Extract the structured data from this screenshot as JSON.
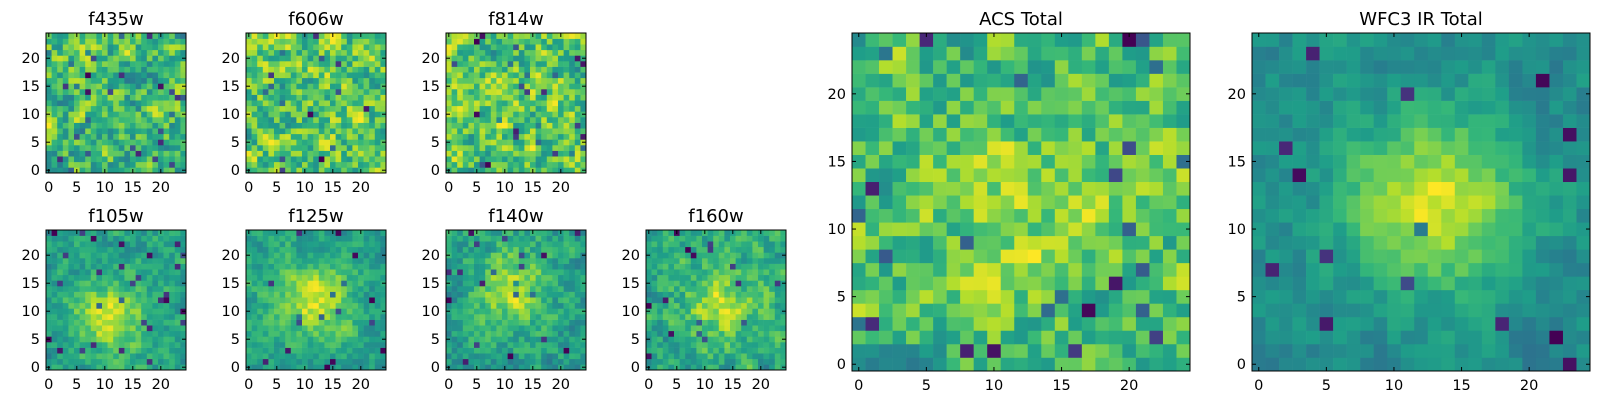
{
  "chart_data": [
    {
      "id": "f435w",
      "type": "heatmap",
      "title": "f435w",
      "colormap": "viridis",
      "grid_size": [
        25,
        25
      ],
      "seed": 11,
      "noise_weight": 1.0,
      "blob_weight": 0.0,
      "blob_center": [
        12,
        12
      ],
      "xlim": [
        -0.5,
        24.5
      ],
      "ylim": [
        -0.5,
        24.5
      ],
      "xticks": [
        0,
        5,
        10,
        15,
        20
      ],
      "yticks": [
        0,
        5,
        10,
        15,
        20
      ],
      "xtick_labels": [
        "0",
        "5",
        "10",
        "15",
        "20"
      ],
      "ytick_labels": [
        "0",
        "5",
        "10",
        "15",
        "20"
      ],
      "grid": false,
      "colorbar": false
    },
    {
      "id": "f606w",
      "type": "heatmap",
      "title": "f606w",
      "colormap": "viridis",
      "grid_size": [
        25,
        25
      ],
      "seed": 23,
      "noise_weight": 1.0,
      "blob_weight": 0.0,
      "blob_center": [
        12,
        12
      ],
      "xlim": [
        -0.5,
        24.5
      ],
      "ylim": [
        -0.5,
        24.5
      ],
      "xticks": [
        0,
        5,
        10,
        15,
        20
      ],
      "yticks": [
        0,
        5,
        10,
        15,
        20
      ],
      "xtick_labels": [
        "0",
        "5",
        "10",
        "15",
        "20"
      ],
      "ytick_labels": [
        "0",
        "5",
        "10",
        "15",
        "20"
      ],
      "grid": false,
      "colorbar": false
    },
    {
      "id": "f814w",
      "type": "heatmap",
      "title": "f814w",
      "colormap": "viridis",
      "grid_size": [
        25,
        25
      ],
      "seed": 37,
      "noise_weight": 1.0,
      "blob_weight": 0.05,
      "blob_center": [
        12,
        12
      ],
      "xlim": [
        -0.5,
        24.5
      ],
      "ylim": [
        -0.5,
        24.5
      ],
      "xticks": [
        0,
        5,
        10,
        15,
        20
      ],
      "yticks": [
        0,
        5,
        10,
        15,
        20
      ],
      "xtick_labels": [
        "0",
        "5",
        "10",
        "15",
        "20"
      ],
      "ytick_labels": [
        "0",
        "5",
        "10",
        "15",
        "20"
      ],
      "grid": false,
      "colorbar": false
    },
    {
      "id": "f105w",
      "type": "heatmap",
      "title": "f105w",
      "colormap": "viridis",
      "grid_size": [
        25,
        25
      ],
      "seed": 41,
      "noise_weight": 0.55,
      "blob_weight": 0.45,
      "blob_center": [
        11,
        9
      ],
      "xlim": [
        -0.5,
        24.5
      ],
      "ylim": [
        -0.5,
        24.5
      ],
      "xticks": [
        0,
        5,
        10,
        15,
        20
      ],
      "yticks": [
        0,
        5,
        10,
        15,
        20
      ],
      "xtick_labels": [
        "0",
        "5",
        "10",
        "15",
        "20"
      ],
      "ytick_labels": [
        "0",
        "5",
        "10",
        "15",
        "20"
      ],
      "grid": false,
      "colorbar": false
    },
    {
      "id": "f125w",
      "type": "heatmap",
      "title": "f125w",
      "colormap": "viridis",
      "grid_size": [
        25,
        25
      ],
      "seed": 53,
      "noise_weight": 0.55,
      "blob_weight": 0.45,
      "blob_center": [
        12,
        12
      ],
      "xlim": [
        -0.5,
        24.5
      ],
      "ylim": [
        -0.5,
        24.5
      ],
      "xticks": [
        0,
        5,
        10,
        15,
        20
      ],
      "yticks": [
        0,
        5,
        10,
        15,
        20
      ],
      "xtick_labels": [
        "0",
        "5",
        "10",
        "15",
        "20"
      ],
      "ytick_labels": [
        "0",
        "5",
        "10",
        "15",
        "20"
      ],
      "grid": false,
      "colorbar": false
    },
    {
      "id": "f140w",
      "type": "heatmap",
      "title": "f140w",
      "colormap": "viridis",
      "grid_size": [
        25,
        25
      ],
      "seed": 67,
      "noise_weight": 0.6,
      "blob_weight": 0.4,
      "blob_center": [
        11,
        14
      ],
      "xlim": [
        -0.5,
        24.5
      ],
      "ylim": [
        -0.5,
        24.5
      ],
      "xticks": [
        0,
        5,
        10,
        15,
        20
      ],
      "yticks": [
        0,
        5,
        10,
        15,
        20
      ],
      "xtick_labels": [
        "0",
        "5",
        "10",
        "15",
        "20"
      ],
      "ytick_labels": [
        "0",
        "5",
        "10",
        "15",
        "20"
      ],
      "grid": false,
      "colorbar": false
    },
    {
      "id": "f160w",
      "type": "heatmap",
      "title": "f160w",
      "colormap": "viridis",
      "grid_size": [
        25,
        25
      ],
      "seed": 79,
      "noise_weight": 0.65,
      "blob_weight": 0.35,
      "blob_center": [
        13,
        11
      ],
      "xlim": [
        -0.5,
        24.5
      ],
      "ylim": [
        -0.5,
        24.5
      ],
      "xticks": [
        0,
        5,
        10,
        15,
        20
      ],
      "yticks": [
        0,
        5,
        10,
        15,
        20
      ],
      "xtick_labels": [
        "0",
        "5",
        "10",
        "15",
        "20"
      ],
      "ytick_labels": [
        "0",
        "5",
        "10",
        "15",
        "20"
      ],
      "grid": false,
      "colorbar": false
    },
    {
      "id": "acs-total",
      "type": "heatmap",
      "title": "ACS Total",
      "colormap": "viridis",
      "grid_size": [
        25,
        25
      ],
      "seed": 97,
      "noise_weight": 0.85,
      "blob_weight": 0.15,
      "blob_center": [
        12,
        12
      ],
      "xlim": [
        -0.5,
        24.5
      ],
      "ylim": [
        -0.5,
        24.5
      ],
      "xticks": [
        0,
        5,
        10,
        15,
        20
      ],
      "yticks": [
        0,
        5,
        10,
        15,
        20
      ],
      "xtick_labels": [
        "0",
        "5",
        "10",
        "15",
        "20"
      ],
      "ytick_labels": [
        "0",
        "5",
        "10",
        "15",
        "20"
      ],
      "grid": false,
      "colorbar": false
    },
    {
      "id": "wfc3-ir-total",
      "type": "heatmap",
      "title": "WFC3 IR Total",
      "colormap": "viridis",
      "grid_size": [
        25,
        25
      ],
      "seed": 131,
      "noise_weight": 0.4,
      "blob_weight": 0.6,
      "blob_center": [
        13,
        12
      ],
      "xlim": [
        -0.5,
        24.5
      ],
      "ylim": [
        -0.5,
        24.5
      ],
      "xticks": [
        0,
        5,
        10,
        15,
        20
      ],
      "yticks": [
        0,
        5,
        10,
        15,
        20
      ],
      "xtick_labels": [
        "0",
        "5",
        "10",
        "15",
        "20"
      ],
      "ytick_labels": [
        "0",
        "5",
        "10",
        "15",
        "20"
      ],
      "grid": false,
      "colorbar": false
    }
  ]
}
